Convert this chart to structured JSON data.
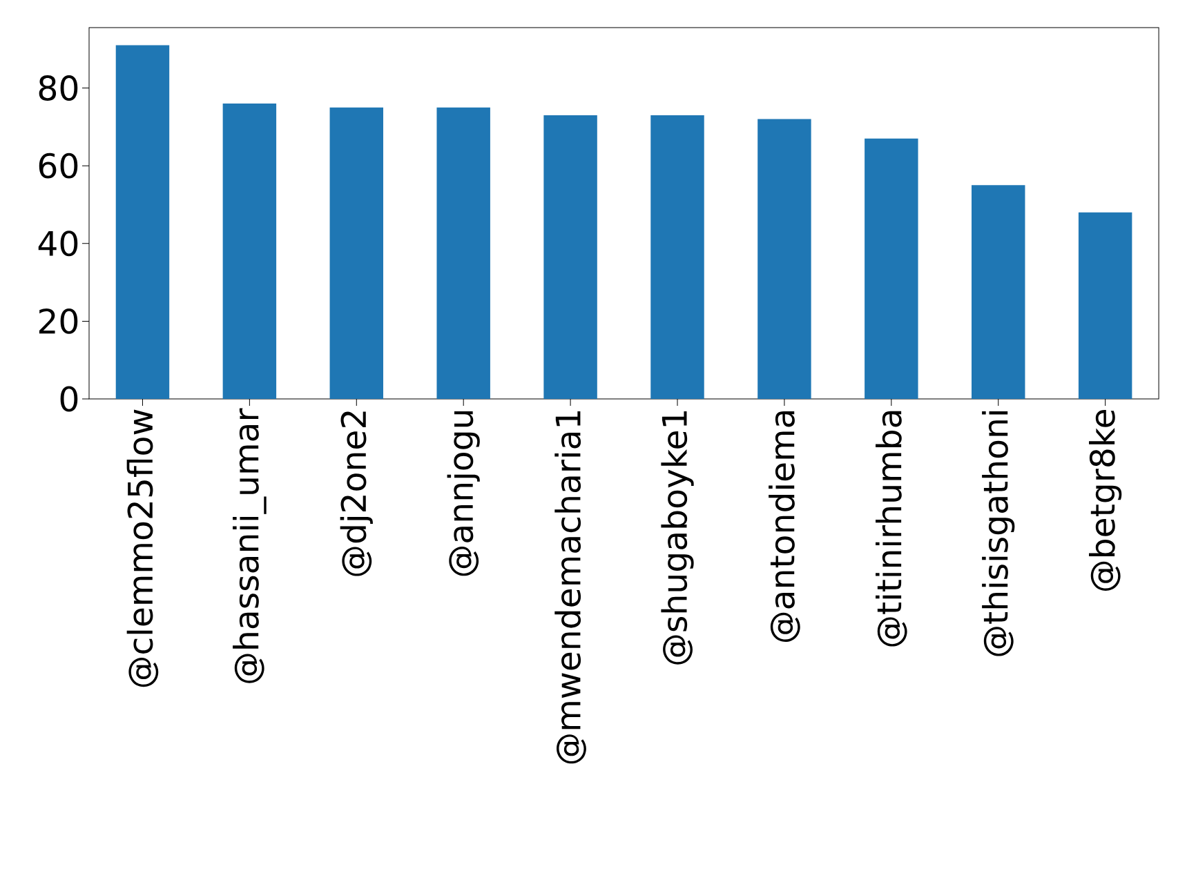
{
  "chart_data": {
    "type": "bar",
    "categories": [
      "@clemmo25flow",
      "@hassanii_umar",
      "@dj2one2",
      "@annjogu",
      "@mwendemacharia1",
      "@shugaboyke1",
      "@antondiema",
      "@titinirhumba",
      "@thisisgathoni",
      "@betgr8ke"
    ],
    "values": [
      91,
      76,
      75,
      75,
      73,
      73,
      72,
      67,
      55,
      48
    ],
    "color": "#1f77b4",
    "ylim": [
      0,
      95.55
    ],
    "yticks": [
      0,
      20,
      40,
      60,
      80
    ]
  }
}
